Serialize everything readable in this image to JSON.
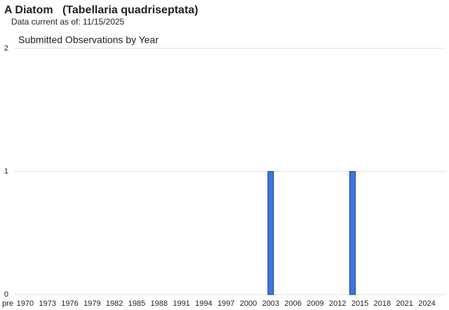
{
  "title": "A Diatom   (Tabellaria quadriseptata)",
  "subtitle": "Data current as of: 11/15/2025",
  "chart_data": {
    "type": "bar",
    "title": "Submitted Observations by Year",
    "categories": [
      "pre",
      "1970",
      null,
      null,
      "1973",
      null,
      null,
      "1976",
      null,
      null,
      "1979",
      null,
      null,
      "1982",
      null,
      null,
      "1985",
      null,
      null,
      "1988",
      null,
      null,
      "1991",
      null,
      null,
      "1994",
      null,
      null,
      "1997",
      null,
      null,
      "2000",
      null,
      null,
      "2003",
      null,
      null,
      "2006",
      null,
      null,
      "2009",
      null,
      null,
      "2012",
      null,
      null,
      "2015",
      null,
      null,
      "2018",
      null,
      null,
      "2021",
      null,
      null,
      "2024",
      null,
      null
    ],
    "values": [
      0,
      0,
      0,
      0,
      0,
      0,
      0,
      0,
      0,
      0,
      0,
      0,
      0,
      0,
      0,
      0,
      0,
      0,
      0,
      0,
      0,
      0,
      0,
      0,
      0,
      0,
      0,
      0,
      0,
      0,
      0,
      0,
      0,
      0,
      1,
      0,
      0,
      0,
      0,
      0,
      0,
      0,
      0,
      0,
      0,
      1,
      0,
      0,
      0,
      0,
      0,
      0,
      0,
      0,
      0,
      0,
      0,
      0
    ],
    "color": "#3e74de",
    "ylim": [
      0,
      2
    ],
    "yticks": [
      0,
      1,
      2
    ],
    "grid": true
  }
}
